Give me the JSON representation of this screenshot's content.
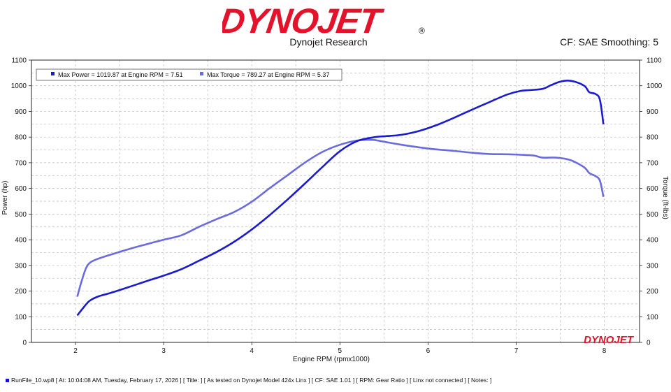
{
  "header": {
    "brand": "DYNOJET",
    "registered_mark": "®",
    "subtitle": "Dynojet Research",
    "cf_smoothing": "CF: SAE Smoothing: 5",
    "watermark": "DYNOJET"
  },
  "colors": {
    "power": "#1a1ad0",
    "torque": "#6b6be0",
    "brand_red": "#e3132b",
    "grid": "#b8b8b8"
  },
  "legend": {
    "power": "Max Power = 1019.87 at Engine RPM = 7.51",
    "torque": "Max Torque = 789.27 at Engine RPM = 5.37"
  },
  "footer": {
    "text": "RunFile_10.wp8 [ At:  10:04:08 AM, Tuesday, February 17, 2026 ] [ Title:  ]  [ As tested on Dynojet Model 424x Linx  ]  [ CF: SAE 1.01 ]  [ RPM:  Gear Ratio ]  [ Linx not connected ]  [ Notes:  ]"
  },
  "chart_data": {
    "type": "line",
    "xlabel": "Engine RPM (rpmx1000)",
    "ylabel": "Power (hp)",
    "y2label": "Torque (ft-lbs)",
    "xlim": [
      1.5,
      8.4
    ],
    "ylim": [
      0,
      1100
    ],
    "y2lim": [
      0,
      1100
    ],
    "xticks": [
      2,
      3,
      4,
      5,
      6,
      7,
      8
    ],
    "yticks": [
      0,
      100,
      200,
      300,
      400,
      500,
      600,
      700,
      800,
      900,
      1000,
      1100
    ],
    "grid": true,
    "legend_position": "top-left",
    "series": [
      {
        "name": "Max Power = 1019.87 at Engine RPM = 7.51",
        "axis": "left",
        "x": [
          2.02,
          2.1,
          2.16,
          2.25,
          2.4,
          2.6,
          2.8,
          3.0,
          3.2,
          3.4,
          3.6,
          3.8,
          4.0,
          4.2,
          4.4,
          4.6,
          4.8,
          5.0,
          5.2,
          5.4,
          5.5,
          5.7,
          5.9,
          6.1,
          6.3,
          6.5,
          6.7,
          6.9,
          7.05,
          7.15,
          7.3,
          7.4,
          7.5,
          7.6,
          7.7,
          7.78,
          7.83,
          7.9,
          7.95,
          7.99
        ],
        "y": [
          105,
          140,
          162,
          178,
          193,
          215,
          238,
          260,
          285,
          318,
          352,
          392,
          440,
          495,
          555,
          618,
          683,
          745,
          785,
          800,
          803,
          809,
          824,
          847,
          876,
          907,
          937,
          966,
          980,
          983,
          988,
          1003,
          1016,
          1020,
          1012,
          998,
          975,
          968,
          945,
          850
        ]
      },
      {
        "name": "Max Torque = 789.27 at Engine RPM = 5.37",
        "axis": "right",
        "x": [
          2.02,
          2.07,
          2.12,
          2.17,
          2.25,
          2.4,
          2.6,
          2.8,
          3.0,
          3.2,
          3.4,
          3.6,
          3.8,
          4.0,
          4.2,
          4.4,
          4.6,
          4.8,
          5.0,
          5.2,
          5.37,
          5.5,
          5.7,
          5.9,
          6.1,
          6.3,
          6.5,
          6.7,
          6.9,
          7.05,
          7.2,
          7.3,
          7.45,
          7.6,
          7.7,
          7.78,
          7.83,
          7.9,
          7.95,
          7.99
        ],
        "y": [
          178,
          240,
          290,
          312,
          325,
          342,
          363,
          382,
          400,
          417,
          450,
          480,
          508,
          548,
          600,
          650,
          700,
          742,
          770,
          787,
          789,
          782,
          770,
          760,
          752,
          746,
          739,
          734,
          733,
          731,
          728,
          720,
          720,
          712,
          697,
          680,
          660,
          648,
          630,
          567
        ]
      }
    ]
  }
}
